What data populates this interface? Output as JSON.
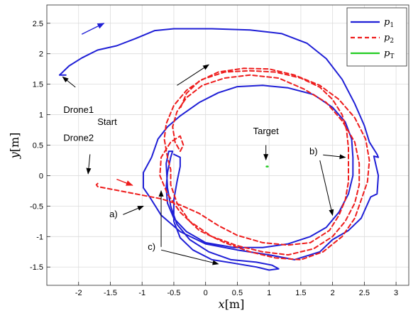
{
  "chart_data": {
    "type": "line",
    "xlabel_var": "x",
    "xlabel_unit": "[m]",
    "ylabel_var": "y",
    "ylabel_unit": "[m]",
    "xlim": [
      -2.5,
      3.2
    ],
    "ylim": [
      -1.8,
      2.8
    ],
    "xticks": [
      -2,
      -1.5,
      -1,
      -0.5,
      0,
      0.5,
      1,
      1.5,
      2,
      2.5,
      3
    ],
    "xtick_labels": [
      "-2",
      "-1.5",
      "-1",
      "-0.5",
      "0",
      "0.5",
      "1",
      "1.5",
      "2",
      "2.5",
      "3"
    ],
    "yticks": [
      -1.5,
      -1,
      -0.5,
      0,
      0.5,
      1,
      1.5,
      2,
      2.5
    ],
    "ytick_labels": [
      "-1.5",
      "-1",
      "-0.5",
      "0",
      "0.5",
      "1",
      "1.5",
      "2",
      "2.5"
    ],
    "grid": true,
    "legend_position": "top-right",
    "series": [
      {
        "name": "p_1",
        "name_base": "p",
        "name_sub": "1",
        "color": "#1f1fd6",
        "style": "solid",
        "points": [
          [
            -2.2,
            1.65
          ],
          [
            -2.3,
            1.65
          ],
          [
            -2.25,
            1.7
          ],
          [
            -2.15,
            1.8
          ],
          [
            -1.95,
            1.93
          ],
          [
            -1.7,
            2.06
          ],
          [
            -1.4,
            2.13
          ],
          [
            -1.1,
            2.25
          ],
          [
            -0.8,
            2.38
          ],
          [
            -0.5,
            2.41
          ],
          [
            0.1,
            2.41
          ],
          [
            0.7,
            2.39
          ],
          [
            1.2,
            2.33
          ],
          [
            1.6,
            2.17
          ],
          [
            1.9,
            1.92
          ],
          [
            2.15,
            1.58
          ],
          [
            2.35,
            1.18
          ],
          [
            2.5,
            0.82
          ],
          [
            2.58,
            0.55
          ],
          [
            2.7,
            0.35
          ],
          [
            2.72,
            0.3
          ],
          [
            2.65,
            0.32
          ],
          [
            2.72,
            0.0
          ],
          [
            2.7,
            -0.3
          ],
          [
            2.6,
            -0.35
          ],
          [
            2.45,
            -0.7
          ],
          [
            2.25,
            -0.9
          ],
          [
            2.0,
            -1.05
          ],
          [
            1.8,
            -1.25
          ],
          [
            1.4,
            -1.38
          ],
          [
            1.0,
            -1.3
          ],
          [
            0.5,
            -1.22
          ],
          [
            0.0,
            -1.12
          ],
          [
            -0.4,
            -0.92
          ],
          [
            -0.7,
            -0.65
          ],
          [
            -0.88,
            -0.35
          ],
          [
            -0.98,
            -0.2
          ],
          [
            -0.98,
            0.05
          ],
          [
            -0.85,
            0.3
          ],
          [
            -0.75,
            0.6
          ],
          [
            -0.6,
            0.8
          ],
          [
            -0.4,
            0.98
          ],
          [
            -0.1,
            1.2
          ],
          [
            0.2,
            1.36
          ],
          [
            0.5,
            1.46
          ],
          [
            0.9,
            1.48
          ],
          [
            1.3,
            1.44
          ],
          [
            1.7,
            1.33
          ],
          [
            2.0,
            1.12
          ],
          [
            2.2,
            0.88
          ],
          [
            2.3,
            0.6
          ],
          [
            2.32,
            0.3
          ],
          [
            2.32,
            0.0
          ],
          [
            2.25,
            -0.3
          ],
          [
            2.1,
            -0.6
          ],
          [
            1.9,
            -0.85
          ],
          [
            1.65,
            -1.0
          ],
          [
            1.3,
            -1.12
          ],
          [
            0.9,
            -1.18
          ],
          [
            0.45,
            -1.18
          ],
          [
            0.0,
            -1.1
          ],
          [
            -0.3,
            -0.92
          ],
          [
            -0.5,
            -0.7
          ],
          [
            -0.6,
            -0.45
          ],
          [
            -0.62,
            -0.2
          ],
          [
            -0.6,
            0.05
          ],
          [
            -0.55,
            0.3
          ],
          [
            -0.52,
            0.4
          ],
          [
            -0.58,
            0.4
          ],
          [
            -0.62,
            0.2
          ],
          [
            -0.6,
            -0.2
          ],
          [
            -0.55,
            -0.5
          ],
          [
            -0.45,
            -0.8
          ],
          [
            -0.25,
            -1.05
          ],
          [
            0.05,
            -1.25
          ],
          [
            0.4,
            -1.38
          ],
          [
            0.8,
            -1.42
          ],
          [
            1.05,
            -1.47
          ],
          [
            1.15,
            -1.53
          ],
          [
            1.0,
            -1.55
          ],
          [
            0.8,
            -1.5
          ],
          [
            0.4,
            -1.43
          ],
          [
            0.1,
            -1.38
          ],
          [
            -0.2,
            -1.22
          ],
          [
            -0.4,
            -1.02
          ],
          [
            -0.5,
            -0.75
          ],
          [
            -0.5,
            -0.4
          ],
          [
            -0.45,
            -0.1
          ],
          [
            -0.4,
            0.15
          ],
          [
            -0.4,
            0.3
          ],
          [
            -0.5,
            0.35
          ]
        ]
      },
      {
        "name": "p_2",
        "name_base": "p",
        "name_sub": "2",
        "color": "#ee1c1c",
        "style": "dashed",
        "points": [
          [
            -1.7,
            -0.13
          ],
          [
            -1.72,
            -0.15
          ],
          [
            -1.7,
            -0.18
          ],
          [
            -1.6,
            -0.2
          ],
          [
            -1.4,
            -0.24
          ],
          [
            -1.2,
            -0.28
          ],
          [
            -0.95,
            -0.33
          ],
          [
            -0.7,
            -0.38
          ],
          [
            -0.4,
            -0.48
          ],
          [
            -0.1,
            -0.62
          ],
          [
            0.2,
            -0.82
          ],
          [
            0.5,
            -0.98
          ],
          [
            0.9,
            -1.1
          ],
          [
            1.3,
            -1.14
          ],
          [
            1.65,
            -1.1
          ],
          [
            1.95,
            -0.9
          ],
          [
            2.1,
            -0.65
          ],
          [
            2.2,
            -0.4
          ],
          [
            2.25,
            -0.1
          ],
          [
            2.25,
            0.15
          ],
          [
            2.25,
            0.45
          ],
          [
            2.22,
            0.75
          ],
          [
            2.15,
            1.0
          ],
          [
            2.0,
            1.25
          ],
          [
            1.8,
            1.45
          ],
          [
            1.5,
            1.6
          ],
          [
            1.1,
            1.7
          ],
          [
            0.7,
            1.72
          ],
          [
            0.3,
            1.7
          ],
          [
            -0.05,
            1.58
          ],
          [
            -0.3,
            1.4
          ],
          [
            -0.5,
            1.15
          ],
          [
            -0.62,
            0.85
          ],
          [
            -0.65,
            0.6
          ],
          [
            -0.6,
            0.3
          ],
          [
            -0.55,
            0.1
          ],
          [
            -0.55,
            -0.15
          ],
          [
            -0.45,
            -0.45
          ],
          [
            -0.25,
            -0.75
          ],
          [
            0.1,
            -1.0
          ],
          [
            0.5,
            -1.15
          ],
          [
            0.9,
            -1.25
          ],
          [
            1.3,
            -1.3
          ],
          [
            1.7,
            -1.2
          ],
          [
            2.0,
            -1.0
          ],
          [
            2.2,
            -0.75
          ],
          [
            2.35,
            -0.45
          ],
          [
            2.42,
            -0.15
          ],
          [
            2.42,
            0.2
          ],
          [
            2.35,
            0.55
          ],
          [
            2.15,
            0.9
          ],
          [
            1.9,
            1.2
          ],
          [
            1.55,
            1.42
          ],
          [
            1.15,
            1.6
          ],
          [
            0.7,
            1.65
          ],
          [
            0.3,
            1.6
          ],
          [
            -0.05,
            1.48
          ],
          [
            -0.3,
            1.28
          ],
          [
            -0.45,
            1.05
          ],
          [
            -0.52,
            0.8
          ],
          [
            -0.48,
            0.55
          ],
          [
            -0.4,
            0.4
          ],
          [
            -0.35,
            0.5
          ],
          [
            -0.4,
            0.65
          ],
          [
            -0.55,
            0.55
          ],
          [
            -0.7,
            0.3
          ],
          [
            -0.72,
            0.0
          ],
          [
            -0.6,
            -0.3
          ],
          [
            -0.4,
            -0.6
          ],
          [
            -0.1,
            -0.9
          ],
          [
            0.3,
            -1.1
          ],
          [
            0.7,
            -1.25
          ],
          [
            1.1,
            -1.35
          ],
          [
            1.5,
            -1.38
          ],
          [
            1.85,
            -1.25
          ],
          [
            2.15,
            -1.0
          ],
          [
            2.35,
            -0.7
          ],
          [
            2.45,
            -0.4
          ],
          [
            2.55,
            -0.1
          ],
          [
            2.58,
            0.25
          ],
          [
            2.52,
            0.6
          ],
          [
            2.35,
            0.95
          ],
          [
            2.1,
            1.25
          ],
          [
            1.8,
            1.48
          ],
          [
            1.4,
            1.65
          ],
          [
            1.0,
            1.75
          ],
          [
            0.6,
            1.76
          ],
          [
            0.2,
            1.7
          ],
          [
            -0.1,
            1.55
          ],
          [
            -0.3,
            1.35
          ],
          [
            -0.4,
            1.1
          ]
        ]
      },
      {
        "name": "p_T",
        "name_base": "p",
        "name_sub": "T",
        "color": "#22cc22",
        "style": "solid",
        "points": [
          [
            0.96,
            0.15
          ],
          [
            0.98,
            0.15
          ]
        ]
      }
    ],
    "annotations": [
      {
        "id": "target",
        "text": "Target",
        "x": 0.95,
        "y": 0.68,
        "arrow": [
          [
            0.95,
            0.5
          ],
          [
            0.95,
            0.26
          ]
        ],
        "color": "#000000"
      },
      {
        "id": "drone1",
        "text": "Drone1",
        "x": -2.0,
        "y": 1.03,
        "arrow": [
          [
            -2.05,
            1.45
          ],
          [
            -2.25,
            1.62
          ]
        ],
        "color": "#000000"
      },
      {
        "id": "start",
        "text": "Start",
        "x": -1.55,
        "y": 0.83,
        "color": "#000000"
      },
      {
        "id": "drone2",
        "text": "Drone2",
        "x": -2.0,
        "y": 0.57,
        "arrow": [
          [
            -1.82,
            0.35
          ],
          [
            -1.85,
            0.03
          ]
        ],
        "color": "#000000"
      },
      {
        "id": "a",
        "text": "a)",
        "x": -1.45,
        "y": -0.68,
        "arrow": [
          [
            -1.3,
            -0.64
          ],
          [
            -0.98,
            -0.5
          ]
        ],
        "color": "#000000"
      },
      {
        "id": "b",
        "text": "b)",
        "x": 1.7,
        "y": 0.35,
        "arrows": [
          [
            [
              1.85,
              0.34
            ],
            [
              2.2,
              0.3
            ]
          ],
          [
            [
              1.8,
              0.25
            ],
            [
              2.0,
              -0.65
            ]
          ]
        ],
        "color": "#000000"
      },
      {
        "id": "c",
        "text": "c)",
        "x": -0.85,
        "y": -1.22,
        "arrows": [
          [
            [
              -0.7,
              -1.17
            ],
            [
              -0.7,
              -0.25
            ]
          ],
          [
            [
              -0.7,
              -1.22
            ],
            [
              0.2,
              -1.45
            ]
          ]
        ],
        "color": "#000000"
      },
      {
        "id": "dir1",
        "text": "",
        "arrow": [
          [
            -1.95,
            2.32
          ],
          [
            -1.6,
            2.5
          ]
        ],
        "color": "#1f1fd6"
      },
      {
        "id": "dir2",
        "text": "",
        "arrow": [
          [
            -0.45,
            1.48
          ],
          [
            0.05,
            1.82
          ]
        ],
        "color": "#000000"
      },
      {
        "id": "dir3",
        "text": "",
        "arrow": [
          [
            -1.4,
            -0.06
          ],
          [
            -1.15,
            -0.16
          ]
        ],
        "color": "#ee1c1c"
      }
    ]
  }
}
